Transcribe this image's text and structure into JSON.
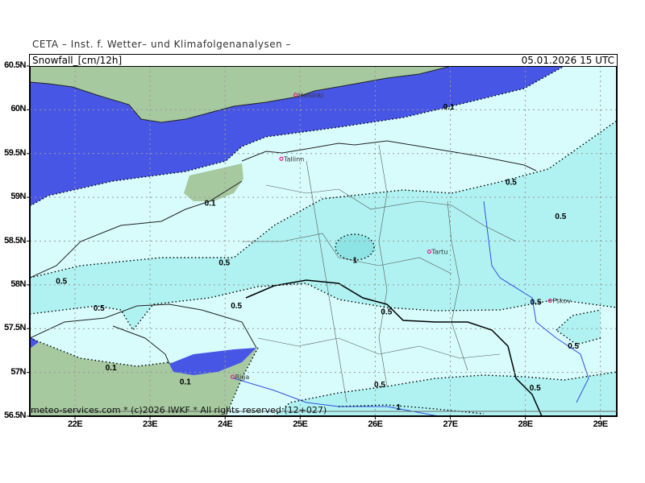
{
  "credit": "CETA – Inst. f. Wetter– und Klimafolgenanalysen –",
  "header": {
    "parameter": "Snowfall_[cm/12h]",
    "valid_time": "05.01.2026 15 UTC"
  },
  "footer": "meteo-services.com * (c)2026 IWKF * All rights reserved (12+027)",
  "colors": {
    "sea_no_snow": "#4856e6",
    "land_no_snow": "#a6c9a0",
    "snow_0_1": "#d8fcfc",
    "snow_0_5": "#b0f2f2",
    "snow_1": "#8ee4e4",
    "city": "#e0208c"
  },
  "axes": {
    "lat_labels": [
      {
        "lat": 60.5,
        "label": "60.5N"
      },
      {
        "lat": 60,
        "label": "60N"
      },
      {
        "lat": 59.5,
        "label": "59.5N"
      },
      {
        "lat": 59,
        "label": "59N"
      },
      {
        "lat": 58.5,
        "label": "58.5N"
      },
      {
        "lat": 58,
        "label": "58N"
      },
      {
        "lat": 57.5,
        "label": "57.5N"
      },
      {
        "lat": 57,
        "label": "57N"
      },
      {
        "lat": 56.5,
        "label": "56.5N"
      }
    ],
    "lon_labels": [
      {
        "lon": 22,
        "label": "22E"
      },
      {
        "lon": 23,
        "label": "23E"
      },
      {
        "lon": 24,
        "label": "24E"
      },
      {
        "lon": 25,
        "label": "25E"
      },
      {
        "lon": 26,
        "label": "26E"
      },
      {
        "lon": 27,
        "label": "27E"
      },
      {
        "lon": 28,
        "label": "28E"
      },
      {
        "lon": 29,
        "label": "29E"
      }
    ]
  },
  "cities": [
    {
      "name": "Helsinki",
      "lon": 24.94,
      "lat": 60.17
    },
    {
      "name": "Tallinn",
      "lon": 24.75,
      "lat": 59.44
    },
    {
      "name": "Tartu",
      "lon": 26.72,
      "lat": 58.38
    },
    {
      "name": "Riga",
      "lon": 24.1,
      "lat": 56.95
    },
    {
      "name": "Pskov",
      "lon": 28.33,
      "lat": 57.82
    }
  ],
  "contour_labels": [
    {
      "text": "0.1",
      "lon": 26.98,
      "lat": 60.04
    },
    {
      "text": "0.5",
      "lon": 27.81,
      "lat": 59.18
    },
    {
      "text": "0.1",
      "lon": 23.8,
      "lat": 58.94
    },
    {
      "text": "0.5",
      "lon": 28.47,
      "lat": 58.79
    },
    {
      "text": "1",
      "lon": 25.73,
      "lat": 58.29
    },
    {
      "text": "0.5",
      "lon": 23.99,
      "lat": 58.26
    },
    {
      "text": "0.5",
      "lon": 21.82,
      "lat": 58.05
    },
    {
      "text": "0.5",
      "lon": 22.32,
      "lat": 57.74
    },
    {
      "text": "0.5",
      "lon": 24.15,
      "lat": 57.77
    },
    {
      "text": "0.5",
      "lon": 26.15,
      "lat": 57.7
    },
    {
      "text": "0.5",
      "lon": 28.14,
      "lat": 57.81
    },
    {
      "text": "0.5",
      "lon": 28.64,
      "lat": 57.31
    },
    {
      "text": "0.1",
      "lon": 22.48,
      "lat": 57.06
    },
    {
      "text": "0.1",
      "lon": 23.47,
      "lat": 56.9
    },
    {
      "text": "0.5",
      "lon": 26.06,
      "lat": 56.87
    },
    {
      "text": "0.5",
      "lon": 28.13,
      "lat": 56.83
    },
    {
      "text": "1",
      "lon": 26.31,
      "lat": 56.61
    }
  ]
}
